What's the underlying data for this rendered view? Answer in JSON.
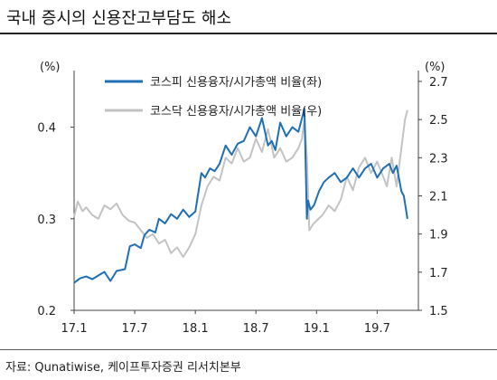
{
  "header": {
    "title": "국내 증시의 신용잔고부담도 해소"
  },
  "footer": {
    "source": "자료: Qunatiwise, 케이프투자증권 리서치본부"
  },
  "colors": {
    "kospi": "#1f6fb5",
    "kosdaq": "#c3c3c3",
    "axis": "#444444"
  },
  "chart_data": {
    "type": "line",
    "title": "국내 증시의 신용잔고부담도 해소",
    "x_ticks": [
      "17.1",
      "17.7",
      "18.1",
      "18.7",
      "19.1",
      "19.7"
    ],
    "y_left": {
      "unit": "(%)",
      "range": [
        0.2,
        0.45
      ],
      "ticks": [
        "0.2",
        "0.3",
        "0.4"
      ]
    },
    "y_right": {
      "unit": "(%)",
      "range": [
        1.5,
        2.7
      ],
      "ticks": [
        "1.5",
        "1.7",
        "1.9",
        "2.1",
        "2.3",
        "2.5",
        "2.7"
      ]
    },
    "legend_position": "top-center",
    "grid": false,
    "series": [
      {
        "name": "코스피 신용융자/시가총액 비율(좌)",
        "axis": "left",
        "x": [
          2017.0,
          2017.05,
          2017.1,
          2017.15,
          2017.2,
          2017.25,
          2017.3,
          2017.35,
          2017.42,
          2017.46,
          2017.5,
          2017.55,
          2017.58,
          2017.62,
          2017.67,
          2017.7,
          2017.75,
          2017.8,
          2017.85,
          2017.9,
          2017.95,
          2018.0,
          2018.05,
          2018.08,
          2018.12,
          2018.16,
          2018.2,
          2018.25,
          2018.3,
          2018.35,
          2018.4,
          2018.45,
          2018.5,
          2018.55,
          2018.6,
          2018.63,
          2018.66,
          2018.7,
          2018.75,
          2018.8,
          2018.85,
          2018.88,
          2018.9,
          2018.92,
          2018.93,
          2018.95,
          2018.98,
          2019.02,
          2019.06,
          2019.1,
          2019.15,
          2019.2,
          2019.25,
          2019.3,
          2019.35,
          2019.4,
          2019.45,
          2019.5,
          2019.55,
          2019.6,
          2019.63,
          2019.66,
          2019.7,
          2019.72,
          2019.75
        ],
        "values": [
          0.23,
          0.235,
          0.237,
          0.234,
          0.238,
          0.242,
          0.232,
          0.243,
          0.245,
          0.27,
          0.272,
          0.268,
          0.282,
          0.288,
          0.285,
          0.3,
          0.295,
          0.305,
          0.3,
          0.31,
          0.302,
          0.308,
          0.35,
          0.345,
          0.355,
          0.352,
          0.36,
          0.38,
          0.37,
          0.382,
          0.385,
          0.4,
          0.39,
          0.41,
          0.38,
          0.385,
          0.375,
          0.405,
          0.39,
          0.4,
          0.395,
          0.41,
          0.42,
          0.3,
          0.32,
          0.31,
          0.315,
          0.33,
          0.34,
          0.345,
          0.35,
          0.34,
          0.345,
          0.355,
          0.345,
          0.355,
          0.36,
          0.345,
          0.355,
          0.36,
          0.35,
          0.358,
          0.33,
          0.325,
          0.3
        ]
      },
      {
        "name": "코스닥 신용융자/시가총액 비율(우)",
        "axis": "right",
        "x": [
          2017.0,
          2017.03,
          2017.07,
          2017.1,
          2017.15,
          2017.2,
          2017.25,
          2017.3,
          2017.35,
          2017.4,
          2017.45,
          2017.5,
          2017.55,
          2017.6,
          2017.65,
          2017.7,
          2017.75,
          2017.8,
          2017.85,
          2017.9,
          2017.95,
          2018.0,
          2018.05,
          2018.1,
          2018.15,
          2018.2,
          2018.25,
          2018.3,
          2018.35,
          2018.4,
          2018.45,
          2018.5,
          2018.55,
          2018.6,
          2018.65,
          2018.7,
          2018.75,
          2018.8,
          2018.85,
          2018.88,
          2018.9,
          2018.92,
          2018.94,
          2018.97,
          2019.0,
          2019.05,
          2019.1,
          2019.15,
          2019.2,
          2019.25,
          2019.3,
          2019.35,
          2019.4,
          2019.45,
          2019.5,
          2019.55,
          2019.58,
          2019.62,
          2019.66,
          2019.7,
          2019.73,
          2019.75
        ],
        "values": [
          1.99,
          2.07,
          2.02,
          2.04,
          2.0,
          1.98,
          2.05,
          2.03,
          2.06,
          2.0,
          1.97,
          1.96,
          1.92,
          1.88,
          1.9,
          1.85,
          1.87,
          1.8,
          1.83,
          1.78,
          1.83,
          1.9,
          2.05,
          2.15,
          2.2,
          2.18,
          2.3,
          2.27,
          2.35,
          2.28,
          2.3,
          2.4,
          2.33,
          2.45,
          2.3,
          2.35,
          2.28,
          2.3,
          2.35,
          2.4,
          2.5,
          2.3,
          1.92,
          1.95,
          1.97,
          2.0,
          2.05,
          2.02,
          2.08,
          2.2,
          2.13,
          2.25,
          2.3,
          2.22,
          2.28,
          2.2,
          2.15,
          2.3,
          2.15,
          2.35,
          2.5,
          2.55
        ]
      }
    ]
  }
}
